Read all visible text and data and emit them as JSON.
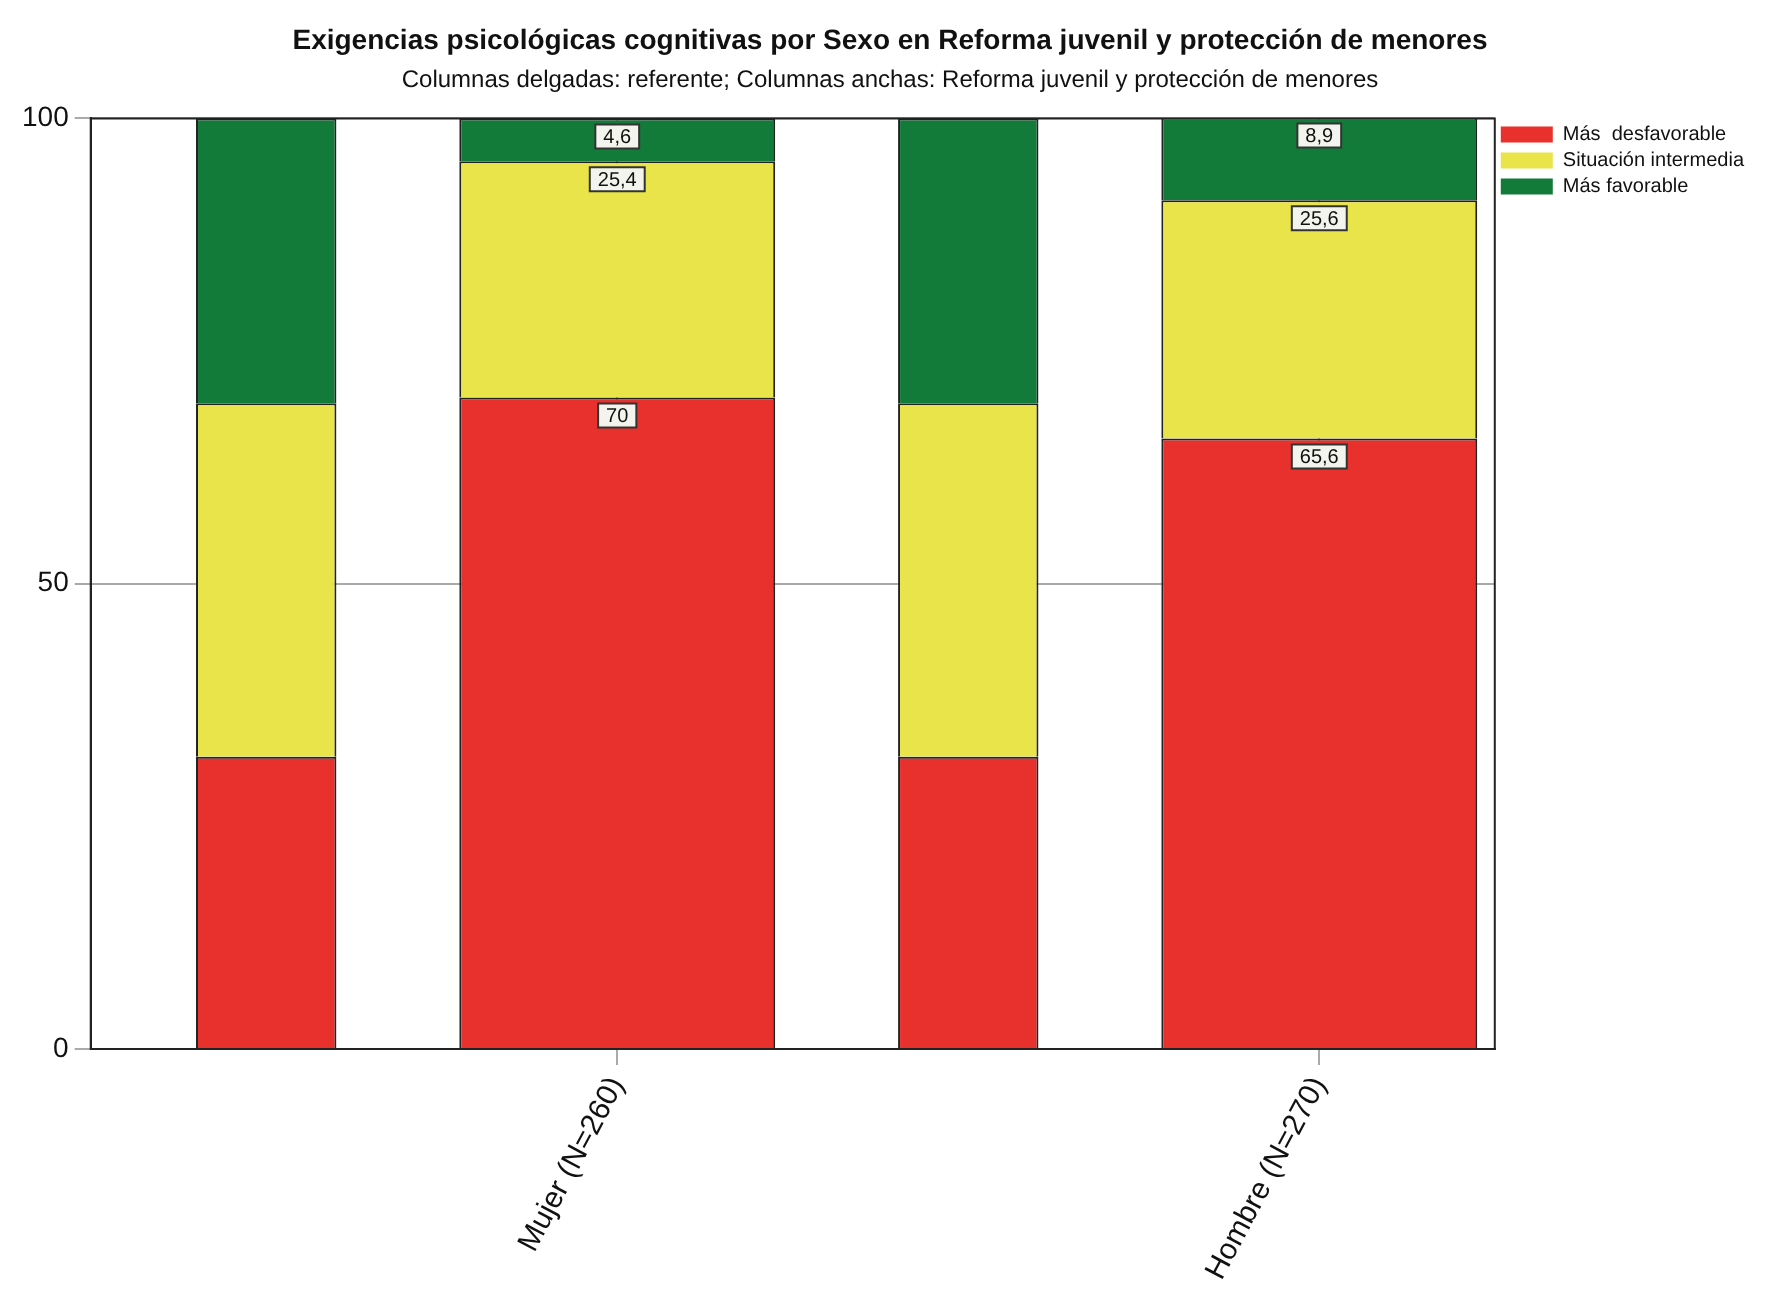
{
  "chart_data": {
    "type": "bar",
    "title": "Exigencias psicológicas cognitivas por Sexo en Reforma juvenil y protección de menores",
    "subtitle": "Columnas delgadas: referente; Columnas anchas: Reforma juvenil y protección de menores",
    "categories": [
      null,
      "Mujer (N=260)",
      null,
      "Hombre (N=270)"
    ],
    "stacked": true,
    "series": [
      {
        "color": "#e8302c",
        "values": [
          31.4,
          null,
          31.4,
          null
        ]
      },
      {
        "color": "#e8e44a",
        "values": [
          38,
          null,
          38,
          null
        ]
      },
      {
        "color": "#137b3a",
        "values": [
          30.6,
          null,
          30.6,
          null
        ]
      },
      {
        "name": "Más  desfavorable",
        "color": "#e8302c",
        "values": [
          null,
          70,
          null,
          65.6
        ],
        "value_labels": [
          null,
          "70",
          null,
          "65,6"
        ]
      },
      {
        "name": "Situación intermedia",
        "color": "#e8e44a",
        "values": [
          null,
          25.4,
          null,
          25.6
        ],
        "value_labels": [
          null,
          "25,4",
          null,
          "25,6"
        ]
      },
      {
        "name": "Más favorable",
        "color": "#137b3a",
        "values": [
          null,
          4.6,
          null,
          8.9
        ],
        "value_labels": [
          null,
          "4,6",
          null,
          "8,9"
        ]
      }
    ],
    "ylim": [
      0,
      100
    ],
    "yticks": [
      0,
      50,
      100
    ],
    "grid": true,
    "legend": "top right"
  }
}
